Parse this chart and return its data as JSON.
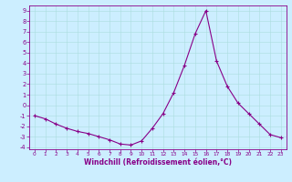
{
  "x": [
    0,
    1,
    2,
    3,
    4,
    5,
    6,
    7,
    8,
    9,
    10,
    11,
    12,
    13,
    14,
    15,
    16,
    17,
    18,
    19,
    20,
    21,
    22,
    23
  ],
  "y": [
    -1.0,
    -1.3,
    -1.8,
    -2.2,
    -2.5,
    -2.7,
    -3.0,
    -3.3,
    -3.7,
    -3.8,
    -3.4,
    -2.2,
    -0.8,
    1.2,
    3.8,
    6.8,
    9.0,
    4.2,
    1.8,
    0.2,
    -0.8,
    -1.8,
    -2.8,
    -3.1
  ],
  "line_color": "#880088",
  "marker": "+",
  "marker_size": 3,
  "marker_lw": 0.8,
  "line_width": 0.8,
  "bg_color": "#cceeff",
  "grid_color": "#aadddd",
  "xlabel": "Windchill (Refroidissement éolien,°C)",
  "xlim_min": -0.5,
  "xlim_max": 23.5,
  "ylim_min": -4.2,
  "ylim_max": 9.5,
  "xticks": [
    0,
    1,
    2,
    3,
    4,
    5,
    6,
    7,
    8,
    9,
    10,
    11,
    12,
    13,
    14,
    15,
    16,
    17,
    18,
    19,
    20,
    21,
    22,
    23
  ],
  "yticks": [
    -4,
    -3,
    -2,
    -1,
    0,
    1,
    2,
    3,
    4,
    5,
    6,
    7,
    8,
    9
  ],
  "tick_label_color": "#880088",
  "xlabel_color": "#880088",
  "spine_color": "#880088",
  "xtick_fontsize": 4.2,
  "ytick_fontsize": 4.8,
  "xlabel_fontsize": 5.5
}
